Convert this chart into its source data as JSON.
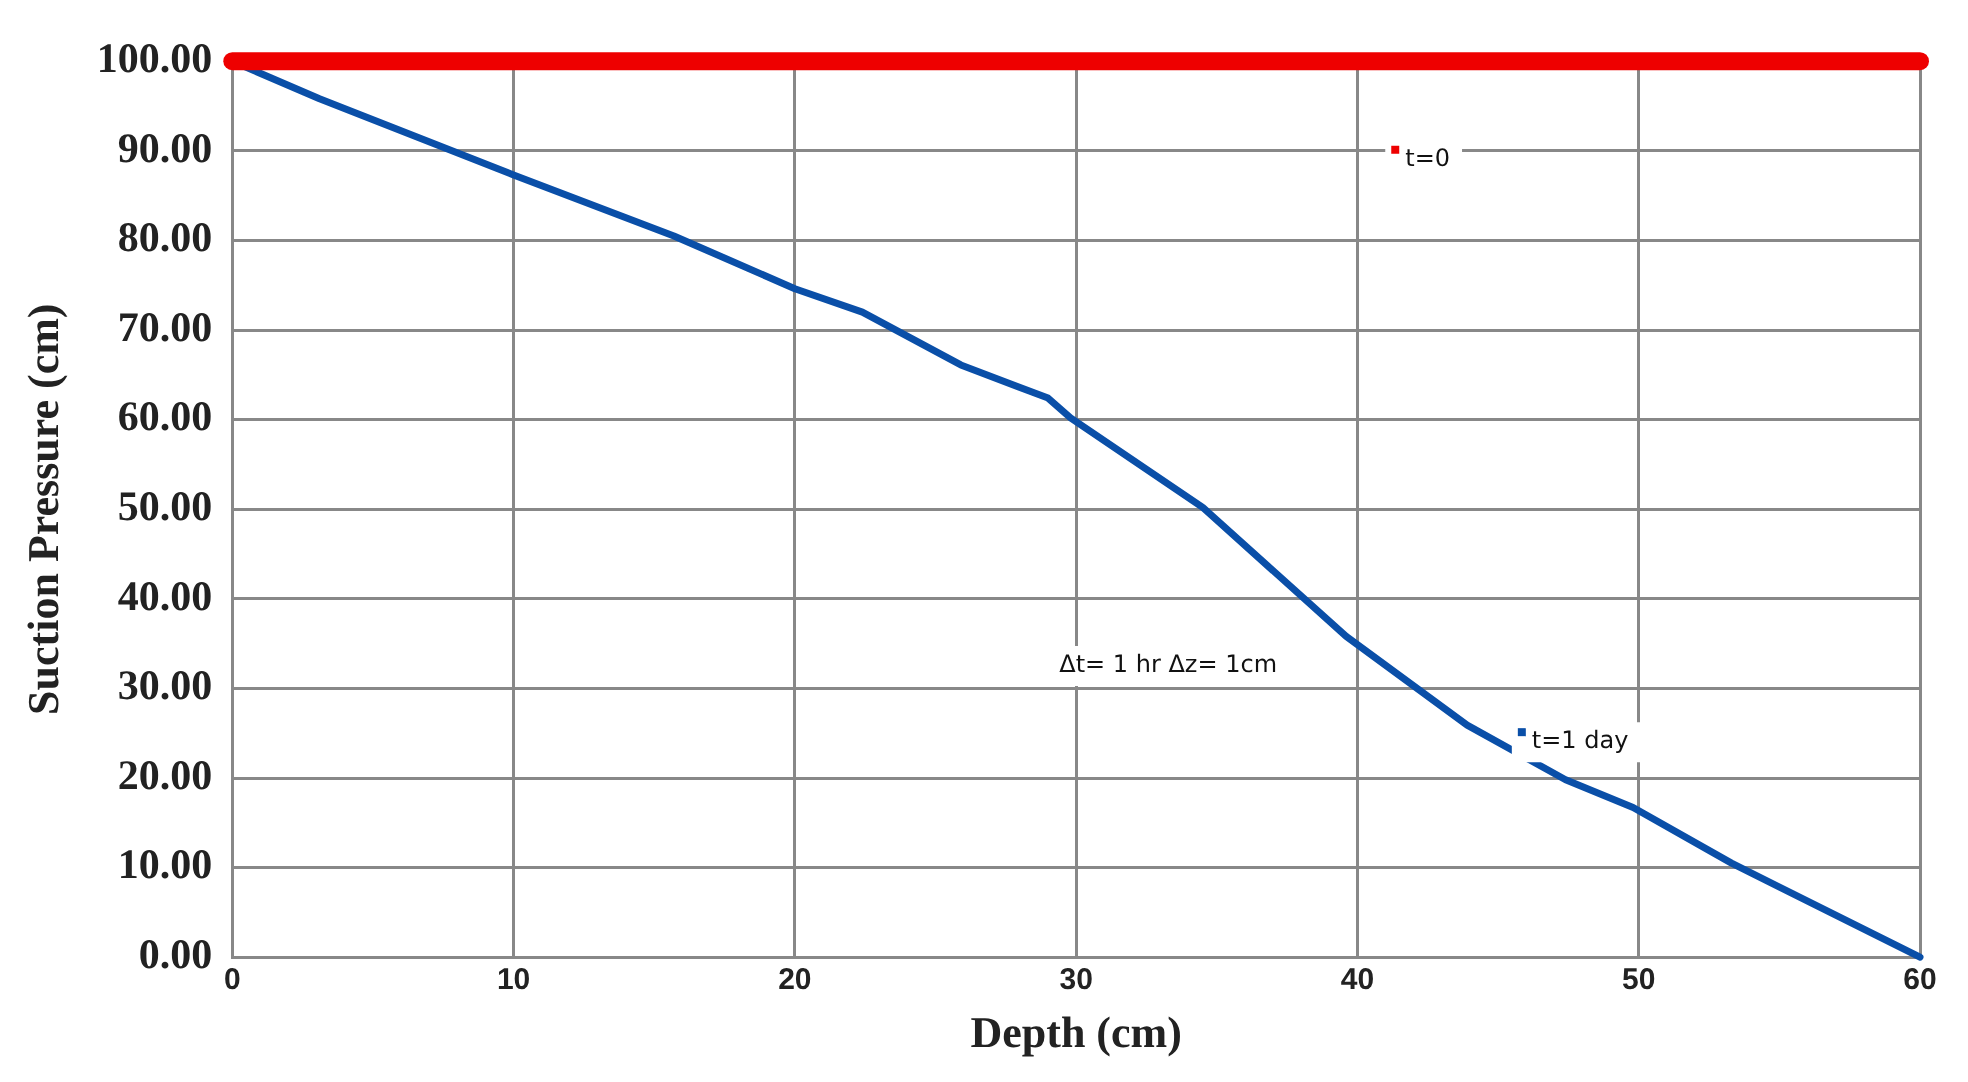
{
  "chart_data": {
    "type": "line",
    "xlabel": "Depth (cm)",
    "ylabel": "Suction Pressure (cm)",
    "x": [
      0,
      3.1,
      10,
      15.7,
      20,
      22.4,
      25.9,
      29,
      29.8,
      34.5,
      39.6,
      43.9,
      47.4,
      49.8,
      53.3,
      60
    ],
    "series": [
      {
        "name": "t=0",
        "color": "#ee0000",
        "x": [
          0,
          60
        ],
        "values": [
          100,
          100
        ]
      },
      {
        "name": "t=1 day",
        "color": "#0a4fa8",
        "values": [
          100,
          95.8,
          87.3,
          80.5,
          74.6,
          72,
          66.1,
          62.4,
          60.2,
          50.2,
          35.8,
          25.9,
          19.8,
          16.7,
          10.5,
          0
        ]
      }
    ],
    "xlim": [
      0,
      60
    ],
    "xticks": [
      0,
      10,
      20,
      30,
      40,
      50,
      60
    ],
    "ylim": [
      0,
      100
    ],
    "yticks": [
      {
        "value": 0,
        "label": "0.00"
      },
      {
        "value": 10,
        "label": "10.00"
      },
      {
        "value": 20,
        "label": "20.00"
      },
      {
        "value": 30,
        "label": "30.00"
      },
      {
        "value": 40,
        "label": "40.00"
      },
      {
        "value": 50,
        "label": "50.00"
      },
      {
        "value": 60,
        "label": "60.00"
      },
      {
        "value": 70,
        "label": "70.00"
      },
      {
        "value": 80,
        "label": "80.00"
      },
      {
        "value": 90,
        "label": "90.00"
      },
      {
        "value": 100,
        "label": "100.00"
      }
    ],
    "annotations": [
      "Δt= 1 hr Δz= 1cm"
    ],
    "grid": true,
    "marker": "none",
    "line_style": "solid",
    "legend": "right"
  }
}
